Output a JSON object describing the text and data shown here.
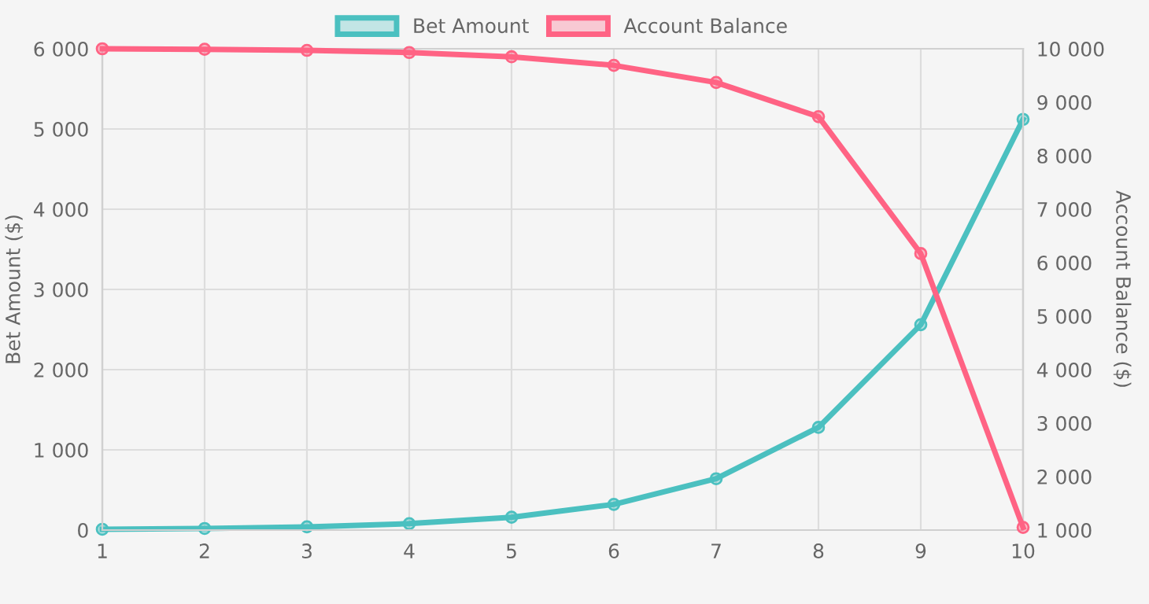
{
  "chart_data": {
    "type": "line",
    "x": [
      1,
      2,
      3,
      4,
      5,
      6,
      7,
      8,
      9,
      10
    ],
    "series": [
      {
        "name": "Bet Amount",
        "color": "#4bc0c0",
        "values": [
          10,
          20,
          40,
          80,
          160,
          320,
          640,
          1280,
          2560,
          5120
        ]
      },
      {
        "name": "Account Balance",
        "color": "#ff6384",
        "axis": "y2",
        "values": [
          10000,
          9990,
          9970,
          9930,
          9850,
          9690,
          9370,
          8730,
          6170,
          1050
        ]
      }
    ],
    "xlim": [
      1,
      10
    ],
    "xticks": [
      1,
      2,
      3,
      4,
      5,
      6,
      7,
      8,
      9,
      10
    ],
    "ylim": [
      0,
      6000
    ],
    "yticks": [
      0,
      {
        "value": 1000,
        "label": "1 000"
      },
      {
        "value": 2000,
        "label": "2 000"
      },
      {
        "value": 3000,
        "label": "3 000"
      },
      {
        "value": 4000,
        "label": "4 000"
      },
      {
        "value": 5000,
        "label": "5 000"
      },
      {
        "value": 6000,
        "label": "6 000"
      }
    ],
    "y2lim": [
      1000,
      10000
    ],
    "y2ticks": [
      {
        "value": 1000,
        "label": "1 000"
      },
      {
        "value": 2000,
        "label": "2 000"
      },
      {
        "value": 3000,
        "label": "3 000"
      },
      {
        "value": 4000,
        "label": "4 000"
      },
      {
        "value": 5000,
        "label": "5 000"
      },
      {
        "value": 6000,
        "label": "6 000"
      },
      {
        "value": 7000,
        "label": "7 000"
      },
      {
        "value": 8000,
        "label": "8 000"
      },
      {
        "value": 9000,
        "label": "9 000"
      },
      {
        "value": 10000,
        "label": "10 000"
      }
    ],
    "ylabel": "Bet Amount ($)",
    "y2label": "Account Balance ($)",
    "grid": true,
    "legend": "top",
    "marker": "circle",
    "line_style": "solid"
  }
}
